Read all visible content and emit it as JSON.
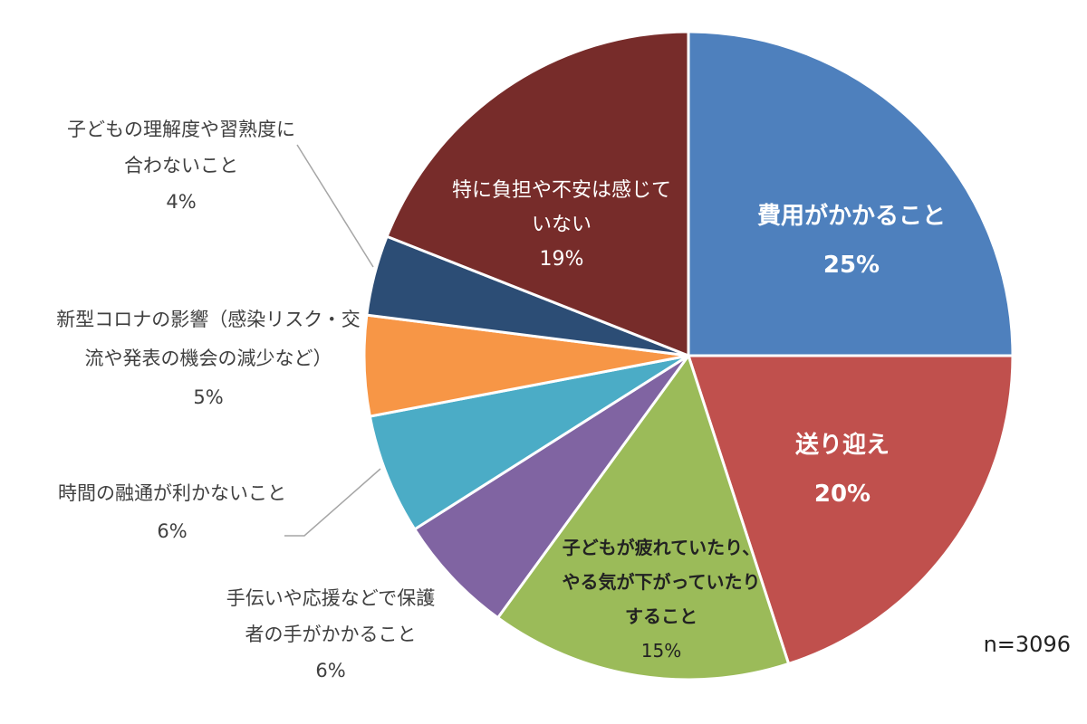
{
  "chart_data": {
    "type": "pie",
    "note": "n=3096",
    "slices": [
      {
        "label_lines": [
          "費用がかかること"
        ],
        "pct_text": "25%",
        "value": 25,
        "color": "#4E80BD"
      },
      {
        "label_lines": [
          "送り迎え"
        ],
        "pct_text": "20%",
        "value": 20,
        "color": "#C0504D"
      },
      {
        "label_lines": [
          "子どもが疲れていたり、",
          "やる気が下がっていたり",
          "すること"
        ],
        "pct_text": "15%",
        "value": 15,
        "color": "#9BBB59"
      },
      {
        "label_lines": [
          "手伝いや応援などで保護",
          "者の手がかかること"
        ],
        "pct_text": "6%",
        "value": 6,
        "color": "#8064A2"
      },
      {
        "label_lines": [
          "時間の融通が利かないこと"
        ],
        "pct_text": "6%",
        "value": 6,
        "color": "#4BACC6"
      },
      {
        "label_lines": [
          "新型コロナの影響（感染リスク・交",
          "流や発表の機会の減少など）"
        ],
        "pct_text": "5%",
        "value": 5,
        "color": "#F79646"
      },
      {
        "label_lines": [
          "子どもの理解度や習熟度に",
          "合わないこと"
        ],
        "pct_text": "4%",
        "value": 4,
        "color": "#2C4D75"
      },
      {
        "label_lines": [
          "特に負担や不安は感じて",
          "いない"
        ],
        "pct_text": "19%",
        "value": 19,
        "color": "#772C2A"
      }
    ]
  }
}
